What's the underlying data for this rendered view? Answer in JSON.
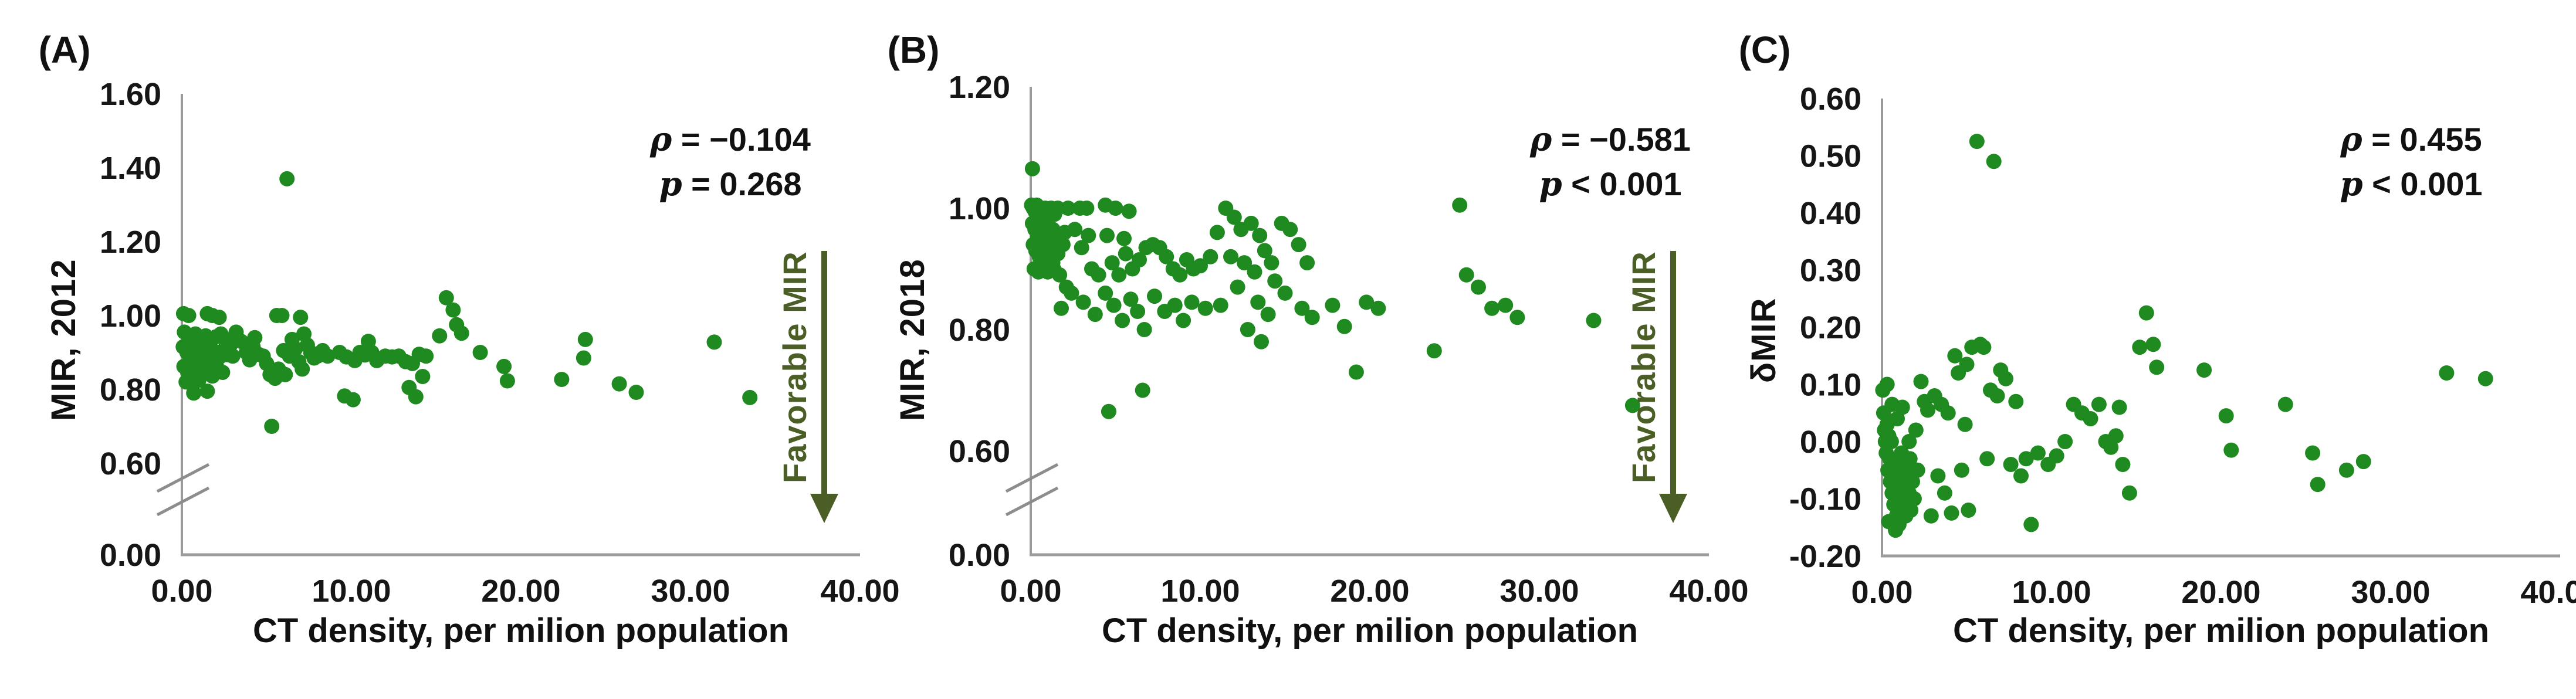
{
  "colors": {
    "dot_green": "#1f8a1f",
    "favorable_olive": "#4a5e26",
    "axis_gray": "#9b9b9b",
    "text_black": "#161616"
  },
  "chart_data": [
    {
      "type": "scatter",
      "panel_label": "(A)",
      "ylabel": "MIR, 2012",
      "xlabel": "CT density, per milion population",
      "annotation": {
        "rho": "ρ = −0.104",
        "p": "p = 0.268"
      },
      "favorable_label": "Favorable MIR",
      "xlim": [
        0,
        40
      ],
      "ylim": [
        0,
        1.6
      ],
      "axis_break": true,
      "x_ticks": [
        "0.00",
        "10.00",
        "20.00",
        "30.00",
        "40.00"
      ],
      "y_ticks": [
        "1.60",
        "1.40",
        "1.20",
        "1.00",
        "0.80",
        "0.60",
        "0.00"
      ],
      "points": [
        [
          0.1,
          1.005
        ],
        [
          0.4,
          1.0
        ],
        [
          1.5,
          1.005
        ],
        [
          1.8,
          1.0
        ],
        [
          2.2,
          0.995
        ],
        [
          0.15,
          0.955
        ],
        [
          0.5,
          0.94
        ],
        [
          0.8,
          0.95
        ],
        [
          1.1,
          0.935
        ],
        [
          1.4,
          0.945
        ],
        [
          1.7,
          0.93
        ],
        [
          2.0,
          0.942
        ],
        [
          2.3,
          0.95
        ],
        [
          2.6,
          0.935
        ],
        [
          2.9,
          0.923
        ],
        [
          0.08,
          0.915
        ],
        [
          0.3,
          0.9
        ],
        [
          0.5,
          0.893
        ],
        [
          0.7,
          0.91
        ],
        [
          0.9,
          0.885
        ],
        [
          1.1,
          0.9
        ],
        [
          1.3,
          0.89
        ],
        [
          1.5,
          0.905
        ],
        [
          1.7,
          0.894
        ],
        [
          1.9,
          0.885
        ],
        [
          2.1,
          0.9
        ],
        [
          2.3,
          0.89
        ],
        [
          2.5,
          0.908
        ],
        [
          2.7,
          0.894
        ],
        [
          3.0,
          0.89
        ],
        [
          0.12,
          0.862
        ],
        [
          0.35,
          0.845
        ],
        [
          0.55,
          0.87
        ],
        [
          0.75,
          0.832
        ],
        [
          0.95,
          0.855
        ],
        [
          1.15,
          0.842
        ],
        [
          1.35,
          0.865
        ],
        [
          1.6,
          0.85
        ],
        [
          1.8,
          0.836
        ],
        [
          2.05,
          0.862
        ],
        [
          2.4,
          0.846
        ],
        [
          0.25,
          0.82
        ],
        [
          0.6,
          0.815
        ],
        [
          1.0,
          0.825
        ],
        [
          0.7,
          0.79
        ],
        [
          1.5,
          0.795
        ],
        [
          3.2,
          0.955
        ],
        [
          3.5,
          0.93
        ],
        [
          3.8,
          0.9
        ],
        [
          4.0,
          0.88
        ],
        [
          4.2,
          0.915
        ],
        [
          4.3,
          0.94
        ],
        [
          4.5,
          0.895
        ],
        [
          4.8,
          0.89
        ],
        [
          5.0,
          0.87
        ],
        [
          5.2,
          0.84
        ],
        [
          5.3,
          0.7
        ],
        [
          5.5,
          0.83
        ],
        [
          5.6,
          1.0
        ],
        [
          5.7,
          0.855
        ],
        [
          5.9,
          1.0
        ],
        [
          6.0,
          0.905
        ],
        [
          6.1,
          0.84
        ],
        [
          6.2,
          1.37
        ],
        [
          6.35,
          0.89
        ],
        [
          6.5,
          0.935
        ],
        [
          6.7,
          0.91
        ],
        [
          6.9,
          0.875
        ],
        [
          7.0,
          0.995
        ],
        [
          7.1,
          0.855
        ],
        [
          7.2,
          0.95
        ],
        [
          7.4,
          0.92
        ],
        [
          7.6,
          0.9
        ],
        [
          7.8,
          0.885
        ],
        [
          8.0,
          0.89
        ],
        [
          8.3,
          0.905
        ],
        [
          8.6,
          0.89
        ],
        [
          9.3,
          0.9
        ],
        [
          9.6,
          0.782
        ],
        [
          9.7,
          0.888
        ],
        [
          10.1,
          0.772
        ],
        [
          10.2,
          0.878
        ],
        [
          10.5,
          0.9
        ],
        [
          10.8,
          0.893
        ],
        [
          11.0,
          0.93
        ],
        [
          11.2,
          0.9
        ],
        [
          11.5,
          0.878
        ],
        [
          12.0,
          0.89
        ],
        [
          12.4,
          0.888
        ],
        [
          12.8,
          0.89
        ],
        [
          13.2,
          0.875
        ],
        [
          13.4,
          0.805
        ],
        [
          13.6,
          0.87
        ],
        [
          13.8,
          0.78
        ],
        [
          14.0,
          0.895
        ],
        [
          14.2,
          0.835
        ],
        [
          14.4,
          0.89
        ],
        [
          15.2,
          0.945
        ],
        [
          15.6,
          1.048
        ],
        [
          16.0,
          1.015
        ],
        [
          16.2,
          0.975
        ],
        [
          16.5,
          0.952
        ],
        [
          17.6,
          0.9
        ],
        [
          19.0,
          0.862
        ],
        [
          19.2,
          0.823
        ],
        [
          22.4,
          0.827
        ],
        [
          23.7,
          0.885
        ],
        [
          23.8,
          0.935
        ],
        [
          25.8,
          0.815
        ],
        [
          26.8,
          0.792
        ],
        [
          31.4,
          0.928
        ],
        [
          33.5,
          0.778
        ]
      ]
    },
    {
      "type": "scatter",
      "panel_label": "(B)",
      "ylabel": "MIR, 2018",
      "xlabel": "CT density, per milion population",
      "annotation": {
        "rho": "ρ = −0.581",
        "p": "p < 0.001"
      },
      "favorable_label": "Favorable MIR",
      "xlim": [
        0,
        40
      ],
      "ylim": [
        0,
        1.2
      ],
      "axis_break": true,
      "x_ticks": [
        "0.00",
        "10.00",
        "20.00",
        "30.00",
        "40.00"
      ],
      "y_ticks": [
        "1.20",
        "1.00",
        "0.80",
        "0.60",
        "0.00"
      ],
      "points": [
        [
          0.1,
          1.065
        ],
        [
          0.05,
          1.005
        ],
        [
          0.15,
          1.0
        ],
        [
          0.25,
          0.995
        ],
        [
          0.35,
          1.005
        ],
        [
          0.45,
          0.998
        ],
        [
          0.55,
          1.0
        ],
        [
          0.7,
          0.99
        ],
        [
          0.85,
          1.0
        ],
        [
          1.0,
          0.995
        ],
        [
          1.2,
          1.0
        ],
        [
          1.4,
          0.99
        ],
        [
          1.6,
          1.0
        ],
        [
          0.1,
          0.975
        ],
        [
          0.25,
          0.965
        ],
        [
          0.4,
          0.955
        ],
        [
          0.55,
          0.97
        ],
        [
          0.7,
          0.96
        ],
        [
          0.9,
          0.975
        ],
        [
          1.1,
          0.955
        ],
        [
          1.3,
          0.965
        ],
        [
          1.5,
          0.945
        ],
        [
          0.15,
          0.94
        ],
        [
          0.3,
          0.93
        ],
        [
          0.5,
          0.92
        ],
        [
          0.7,
          0.935
        ],
        [
          0.9,
          0.92
        ],
        [
          1.1,
          0.93
        ],
        [
          1.3,
          0.91
        ],
        [
          1.6,
          0.925
        ],
        [
          1.9,
          0.94
        ],
        [
          0.2,
          0.9
        ],
        [
          0.45,
          0.895
        ],
        [
          0.7,
          0.905
        ],
        [
          1.0,
          0.895
        ],
        [
          1.35,
          0.9
        ],
        [
          1.7,
          0.89
        ],
        [
          2.0,
          0.96
        ],
        [
          2.2,
          1.0
        ],
        [
          1.8,
          0.835
        ],
        [
          2.1,
          0.87
        ],
        [
          2.4,
          0.86
        ],
        [
          2.6,
          0.965
        ],
        [
          2.9,
          1.0
        ],
        [
          3.0,
          0.935
        ],
        [
          3.3,
          1.0
        ],
        [
          3.4,
          0.955
        ],
        [
          3.6,
          0.9
        ],
        [
          4.0,
          0.89
        ],
        [
          4.4,
          1.005
        ],
        [
          4.5,
          0.955
        ],
        [
          4.8,
          0.91
        ],
        [
          5.0,
          1.0
        ],
        [
          5.2,
          0.89
        ],
        [
          5.5,
          0.95
        ],
        [
          5.6,
          0.925
        ],
        [
          5.8,
          0.995
        ],
        [
          6.0,
          0.9
        ],
        [
          6.4,
          0.915
        ],
        [
          6.8,
          0.935
        ],
        [
          7.2,
          0.94
        ],
        [
          7.6,
          0.935
        ],
        [
          8.0,
          0.92
        ],
        [
          8.4,
          0.9
        ],
        [
          8.8,
          0.89
        ],
        [
          9.2,
          0.915
        ],
        [
          9.6,
          0.9
        ],
        [
          10.0,
          0.905
        ],
        [
          3.1,
          0.845
        ],
        [
          3.8,
          0.825
        ],
        [
          4.4,
          0.86
        ],
        [
          4.9,
          0.84
        ],
        [
          5.4,
          0.815
        ],
        [
          5.9,
          0.85
        ],
        [
          6.3,
          0.83
        ],
        [
          6.7,
          0.8
        ],
        [
          7.3,
          0.855
        ],
        [
          7.9,
          0.83
        ],
        [
          8.5,
          0.84
        ],
        [
          9.0,
          0.815
        ],
        [
          9.5,
          0.845
        ],
        [
          10.3,
          0.835
        ],
        [
          4.6,
          0.665
        ],
        [
          6.6,
          0.7
        ],
        [
          10.6,
          0.92
        ],
        [
          11.0,
          0.96
        ],
        [
          11.2,
          0.84
        ],
        [
          11.5,
          1.0
        ],
        [
          11.8,
          0.92
        ],
        [
          12.0,
          0.985
        ],
        [
          12.2,
          0.87
        ],
        [
          12.4,
          0.965
        ],
        [
          12.6,
          0.91
        ],
        [
          12.8,
          0.8
        ],
        [
          13.0,
          0.975
        ],
        [
          13.2,
          0.895
        ],
        [
          13.4,
          0.845
        ],
        [
          13.5,
          0.955
        ],
        [
          13.6,
          0.78
        ],
        [
          13.8,
          0.93
        ],
        [
          14.0,
          0.825
        ],
        [
          14.2,
          0.91
        ],
        [
          14.4,
          0.88
        ],
        [
          14.8,
          0.975
        ],
        [
          15.0,
          0.86
        ],
        [
          15.3,
          0.965
        ],
        [
          15.8,
          0.94
        ],
        [
          16.0,
          0.835
        ],
        [
          16.3,
          0.91
        ],
        [
          16.6,
          0.82
        ],
        [
          17.8,
          0.84
        ],
        [
          18.5,
          0.805
        ],
        [
          19.2,
          0.73
        ],
        [
          19.8,
          0.845
        ],
        [
          20.5,
          0.835
        ],
        [
          23.8,
          0.765
        ],
        [
          25.3,
          1.005
        ],
        [
          25.7,
          0.89
        ],
        [
          26.4,
          0.87
        ],
        [
          27.2,
          0.835
        ],
        [
          28.0,
          0.84
        ],
        [
          28.7,
          0.82
        ],
        [
          33.2,
          0.815
        ],
        [
          35.5,
          0.675
        ]
      ]
    },
    {
      "type": "scatter",
      "panel_label": "(C)",
      "ylabel": "δMIR",
      "xlabel": "CT density, per milion population",
      "annotation": {
        "rho": "ρ = 0.455",
        "p": "p < 0.001"
      },
      "favorable_label": null,
      "xlim": [
        0,
        40
      ],
      "ylim": [
        -0.2,
        0.6
      ],
      "axis_break": false,
      "x_ticks": [
        "0.00",
        "10.00",
        "20.00",
        "30.00",
        "40.00"
      ],
      "y_ticks": [
        "0.60",
        "0.50",
        "0.40",
        "0.30",
        "0.20",
        "0.10",
        "0.00",
        "-0.10",
        "-0.20"
      ],
      "points": [
        [
          0.05,
          0.09
        ],
        [
          0.1,
          0.05
        ],
        [
          0.15,
          0.02
        ],
        [
          0.2,
          0.0
        ],
        [
          0.25,
          -0.02
        ],
        [
          0.3,
          0.03
        ],
        [
          0.35,
          -0.05
        ],
        [
          0.4,
          0.01
        ],
        [
          0.45,
          -0.03
        ],
        [
          0.5,
          -0.07
        ],
        [
          0.55,
          0.0
        ],
        [
          0.6,
          -0.09
        ],
        [
          0.65,
          -0.04
        ],
        [
          0.7,
          -0.11
        ],
        [
          0.75,
          -0.06
        ],
        [
          0.8,
          -0.1
        ],
        [
          0.85,
          -0.13
        ],
        [
          0.9,
          -0.08
        ],
        [
          0.95,
          -0.12
        ],
        [
          1.0,
          -0.145
        ],
        [
          1.05,
          -0.05
        ],
        [
          1.1,
          -0.09
        ],
        [
          1.15,
          -0.02
        ],
        [
          1.2,
          -0.12
        ],
        [
          1.25,
          -0.07
        ],
        [
          1.3,
          -0.1
        ],
        [
          1.35,
          -0.04
        ],
        [
          1.4,
          -0.13
        ],
        [
          1.45,
          -0.08
        ],
        [
          1.5,
          -0.11
        ],
        [
          1.55,
          -0.06
        ],
        [
          1.6,
          -0.09
        ],
        [
          1.65,
          -0.03
        ],
        [
          1.7,
          -0.12
        ],
        [
          1.8,
          -0.07
        ],
        [
          1.9,
          -0.1
        ],
        [
          2.0,
          0.02
        ],
        [
          2.1,
          -0.05
        ],
        [
          0.3,
          0.1
        ],
        [
          0.6,
          0.065
        ],
        [
          0.9,
          0.04
        ],
        [
          1.2,
          0.06
        ],
        [
          0.4,
          -0.14
        ],
        [
          0.8,
          -0.155
        ],
        [
          1.6,
          0.0
        ],
        [
          2.3,
          0.105
        ],
        [
          2.5,
          0.07
        ],
        [
          2.7,
          0.055
        ],
        [
          2.9,
          -0.13
        ],
        [
          3.1,
          0.08
        ],
        [
          3.3,
          -0.06
        ],
        [
          3.5,
          0.065
        ],
        [
          3.7,
          -0.09
        ],
        [
          3.9,
          0.05
        ],
        [
          4.1,
          -0.125
        ],
        [
          4.3,
          0.15
        ],
        [
          4.5,
          0.12
        ],
        [
          4.7,
          -0.05
        ],
        [
          4.9,
          0.03
        ],
        [
          5.0,
          0.135
        ],
        [
          5.1,
          -0.12
        ],
        [
          5.3,
          0.165
        ],
        [
          5.6,
          0.525
        ],
        [
          5.8,
          0.17
        ],
        [
          6.0,
          0.165
        ],
        [
          6.2,
          -0.03
        ],
        [
          6.4,
          0.09
        ],
        [
          6.6,
          0.49
        ],
        [
          6.8,
          0.08
        ],
        [
          7.0,
          0.125
        ],
        [
          7.3,
          0.11
        ],
        [
          7.6,
          -0.04
        ],
        [
          7.9,
          0.07
        ],
        [
          8.2,
          -0.06
        ],
        [
          8.5,
          -0.03
        ],
        [
          8.8,
          -0.145
        ],
        [
          9.2,
          -0.02
        ],
        [
          9.8,
          -0.04
        ],
        [
          10.3,
          -0.025
        ],
        [
          10.8,
          0.0
        ],
        [
          11.3,
          0.065
        ],
        [
          11.8,
          0.05
        ],
        [
          12.3,
          0.04
        ],
        [
          12.8,
          0.065
        ],
        [
          13.2,
          0.0
        ],
        [
          13.5,
          -0.01
        ],
        [
          13.8,
          0.01
        ],
        [
          14.0,
          0.06
        ],
        [
          14.2,
          -0.04
        ],
        [
          14.6,
          -0.09
        ],
        [
          15.2,
          0.165
        ],
        [
          15.6,
          0.225
        ],
        [
          16.0,
          0.17
        ],
        [
          16.2,
          0.13
        ],
        [
          19.0,
          0.125
        ],
        [
          20.3,
          0.045
        ],
        [
          20.6,
          -0.015
        ],
        [
          23.8,
          0.065
        ],
        [
          25.4,
          -0.02
        ],
        [
          25.7,
          -0.075
        ],
        [
          27.4,
          -0.05
        ],
        [
          28.4,
          -0.035
        ],
        [
          33.3,
          0.12
        ],
        [
          35.6,
          0.11
        ]
      ]
    }
  ]
}
